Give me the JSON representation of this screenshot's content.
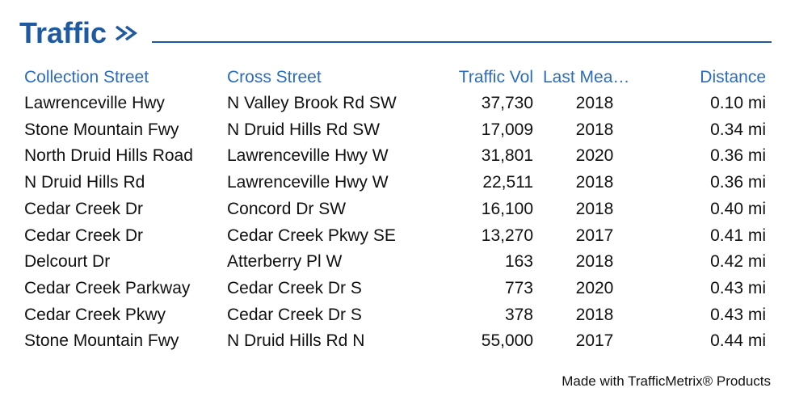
{
  "header": {
    "title": "Traffic"
  },
  "table": {
    "columns": [
      "Collection Street",
      "Cross Street",
      "Traffic Vol",
      "Last Mea…",
      "Distance"
    ],
    "rows": [
      [
        "Lawrenceville Hwy",
        "N Valley Brook Rd SW",
        "37,730",
        "2018",
        "0.10 mi"
      ],
      [
        "Stone Mountain Fwy",
        "N Druid Hills Rd SW",
        "17,009",
        "2018",
        "0.34 mi"
      ],
      [
        "North Druid Hills Road",
        "Lawrenceville Hwy W",
        "31,801",
        "2020",
        "0.36 mi"
      ],
      [
        "N Druid Hills Rd",
        "Lawrenceville Hwy W",
        "22,511",
        "2018",
        "0.36 mi"
      ],
      [
        "Cedar Creek Dr",
        "Concord Dr SW",
        "16,100",
        "2018",
        "0.40 mi"
      ],
      [
        "Cedar Creek Dr",
        "Cedar Creek Pkwy SE",
        "13,270",
        "2017",
        "0.41 mi"
      ],
      [
        "Delcourt Dr",
        "Atterberry Pl W",
        "163",
        "2018",
        "0.42 mi"
      ],
      [
        "Cedar Creek Parkway",
        "Cedar Creek Dr S",
        "773",
        "2020",
        "0.43 mi"
      ],
      [
        "Cedar Creek Pkwy",
        "Cedar Creek Dr S",
        "378",
        "2018",
        "0.43 mi"
      ],
      [
        "Stone Mountain Fwy",
        "N Druid Hills Rd N",
        "55,000",
        "2017",
        "0.44 mi"
      ]
    ]
  },
  "footer": {
    "credit": "Made with TrafficMetrix® Products"
  }
}
